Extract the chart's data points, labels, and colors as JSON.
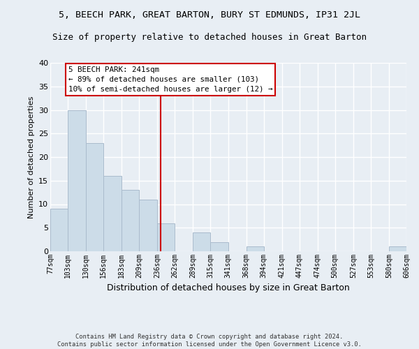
{
  "title": "5, BEECH PARK, GREAT BARTON, BURY ST EDMUNDS, IP31 2JL",
  "subtitle": "Size of property relative to detached houses in Great Barton",
  "xlabel": "Distribution of detached houses by size in Great Barton",
  "ylabel": "Number of detached properties",
  "bar_color": "#ccdce8",
  "bar_edge_color": "#aabbcc",
  "bins": [
    77,
    103,
    130,
    156,
    183,
    209,
    236,
    262,
    289,
    315,
    341,
    368,
    394,
    421,
    447,
    474,
    500,
    527,
    553,
    580,
    606
  ],
  "counts": [
    9,
    30,
    23,
    16,
    13,
    11,
    6,
    0,
    4,
    2,
    0,
    1,
    0,
    0,
    0,
    0,
    0,
    0,
    0,
    1
  ],
  "tick_labels": [
    "77sqm",
    "103sqm",
    "130sqm",
    "156sqm",
    "183sqm",
    "209sqm",
    "236sqm",
    "262sqm",
    "289sqm",
    "315sqm",
    "341sqm",
    "368sqm",
    "394sqm",
    "421sqm",
    "447sqm",
    "474sqm",
    "500sqm",
    "527sqm",
    "553sqm",
    "580sqm",
    "606sqm"
  ],
  "property_size": 241,
  "vline_color": "#cc0000",
  "annotation_line1": "5 BEECH PARK: 241sqm",
  "annotation_line2": "← 89% of detached houses are smaller (103)",
  "annotation_line3": "10% of semi-detached houses are larger (12) →",
  "annotation_box_facecolor": "#ffffff",
  "annotation_box_edgecolor": "#cc0000",
  "ylim": [
    0,
    40
  ],
  "yticks": [
    0,
    5,
    10,
    15,
    20,
    25,
    30,
    35,
    40
  ],
  "footer_text": "Contains HM Land Registry data © Crown copyright and database right 2024.\nContains public sector information licensed under the Open Government Licence v3.0.",
  "background_color": "#e8eef4",
  "grid_color": "#ffffff",
  "title_fontsize": 9.5,
  "subtitle_fontsize": 9
}
